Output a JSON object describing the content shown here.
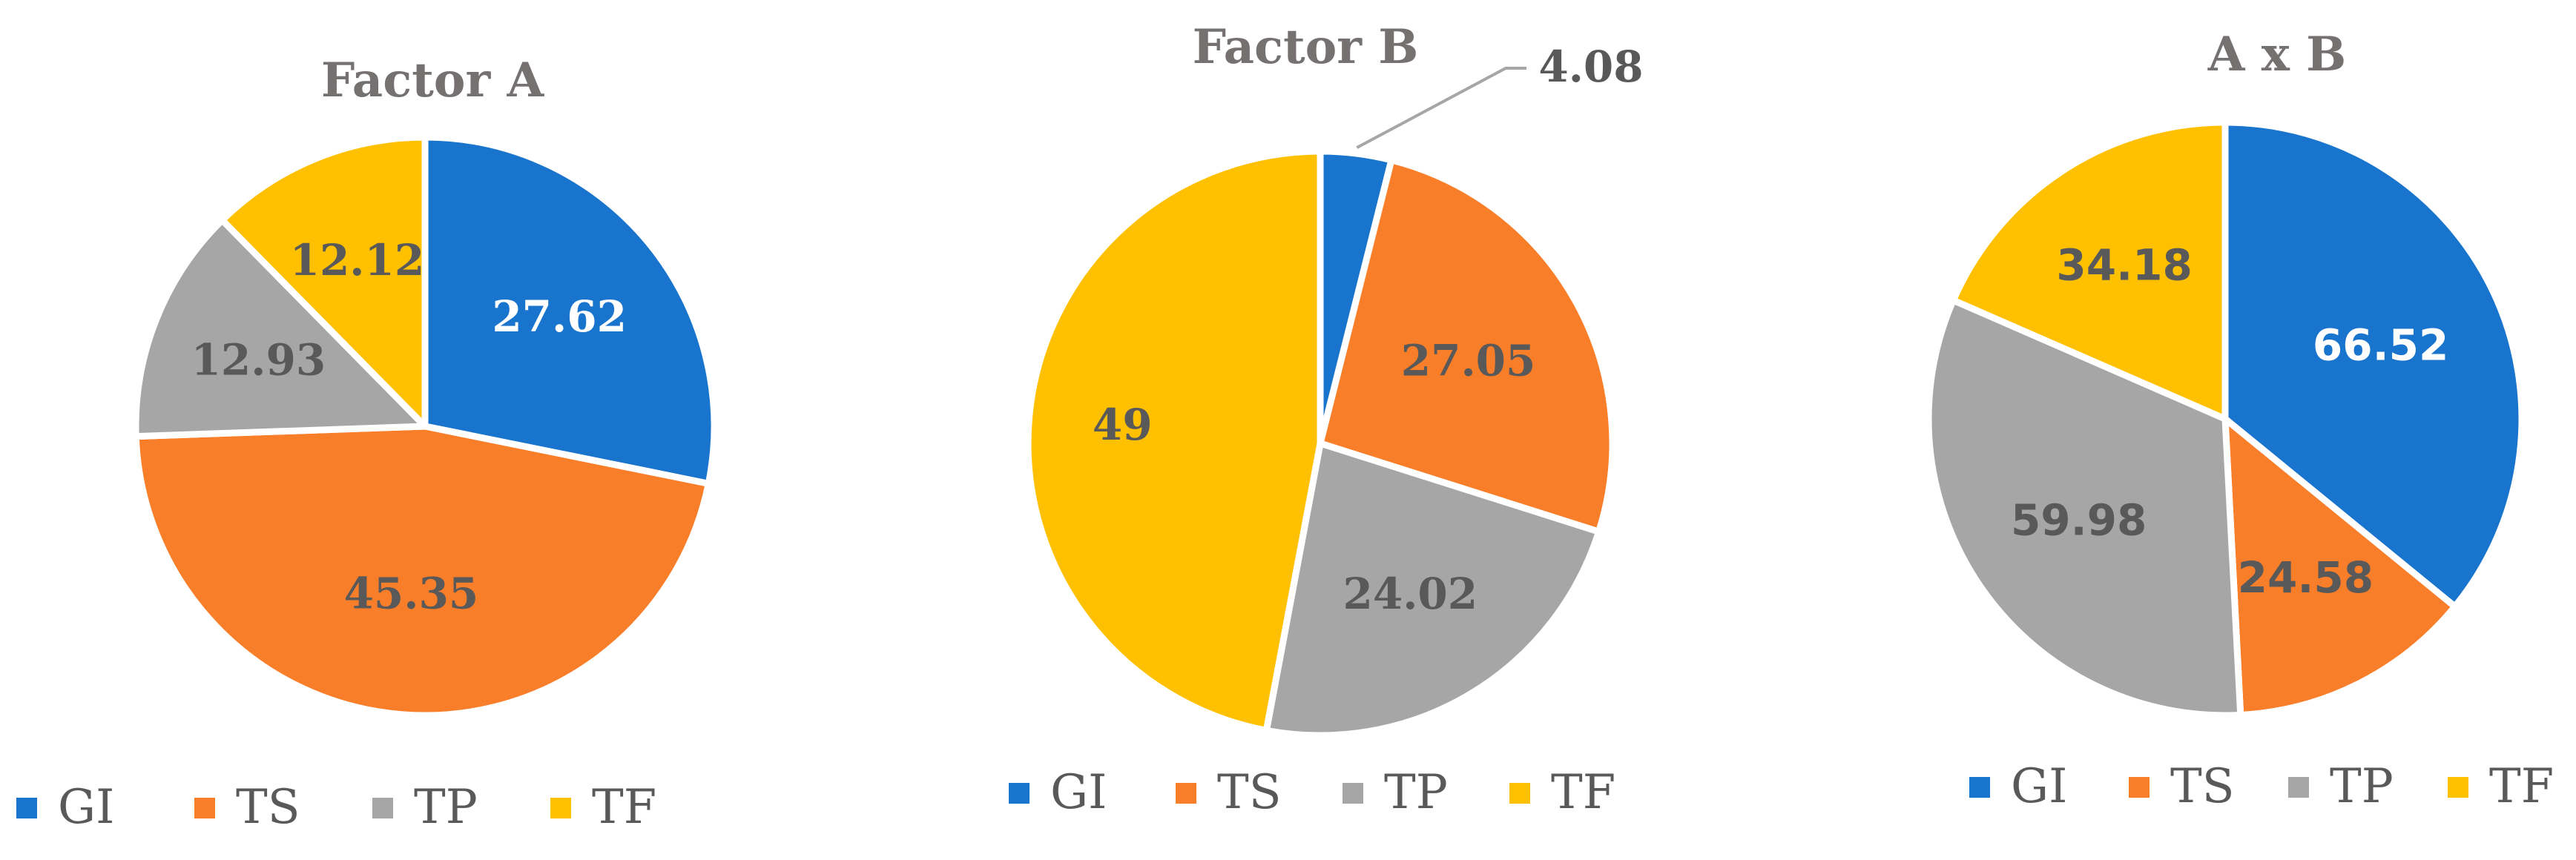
{
  "chart_data": [
    {
      "type": "pie",
      "title": "Factor A",
      "start_angle_deg": 0,
      "label_font": "serif",
      "slices": [
        {
          "name": "GI",
          "value": 27.62,
          "label": "27.62",
          "color": "#1874CD",
          "label_color": "#ffffff"
        },
        {
          "name": "TS",
          "value": 45.35,
          "label": "45.35",
          "color": "#F97E29",
          "label_color": "#595959"
        },
        {
          "name": "TP",
          "value": 12.93,
          "label": "12.93",
          "color": "#A6A6A6",
          "label_color": "#595959"
        },
        {
          "name": "TF",
          "value": 12.12,
          "label": "12.12",
          "color": "#FFC000",
          "label_color": "#595959"
        }
      ],
      "legend": {
        "position": "bottom",
        "entries": [
          "GI",
          "TS",
          "TP",
          "TF"
        ]
      }
    },
    {
      "type": "pie",
      "title": "Factor B",
      "start_angle_deg": 0,
      "label_font": "serif",
      "slices": [
        {
          "name": "GI",
          "value": 4.08,
          "label": "4.08",
          "color": "#1874CD",
          "label_color": "#595959",
          "callout": true
        },
        {
          "name": "TS",
          "value": 27.05,
          "label": "27.05",
          "color": "#F97E29",
          "label_color": "#595959"
        },
        {
          "name": "TP",
          "value": 24.02,
          "label": "24.02",
          "color": "#A6A6A6",
          "label_color": "#595959"
        },
        {
          "name": "TF",
          "value": 49,
          "label": "49",
          "color": "#FFC000",
          "label_color": "#595959"
        }
      ],
      "legend": {
        "position": "bottom",
        "entries": [
          "GI",
          "TS",
          "TP",
          "TF"
        ]
      }
    },
    {
      "type": "pie",
      "title": "A x B",
      "start_angle_deg": 0,
      "label_font": "sans",
      "slices": [
        {
          "name": "GI",
          "value": 66.52,
          "label": "66.52",
          "color": "#1874CD",
          "label_color": "#ffffff"
        },
        {
          "name": "TS",
          "value": 24.58,
          "label": "24.58",
          "color": "#F97E29",
          "label_color": "#595959"
        },
        {
          "name": "TP",
          "value": 59.98,
          "label": "59.98",
          "color": "#A6A6A6",
          "label_color": "#595959"
        },
        {
          "name": "TF",
          "value": 34.18,
          "label": "34.18",
          "color": "#FFC000",
          "label_color": "#595959"
        }
      ],
      "legend": {
        "position": "bottom",
        "entries": [
          "GI",
          "TS",
          "TP",
          "TF"
        ]
      }
    }
  ]
}
